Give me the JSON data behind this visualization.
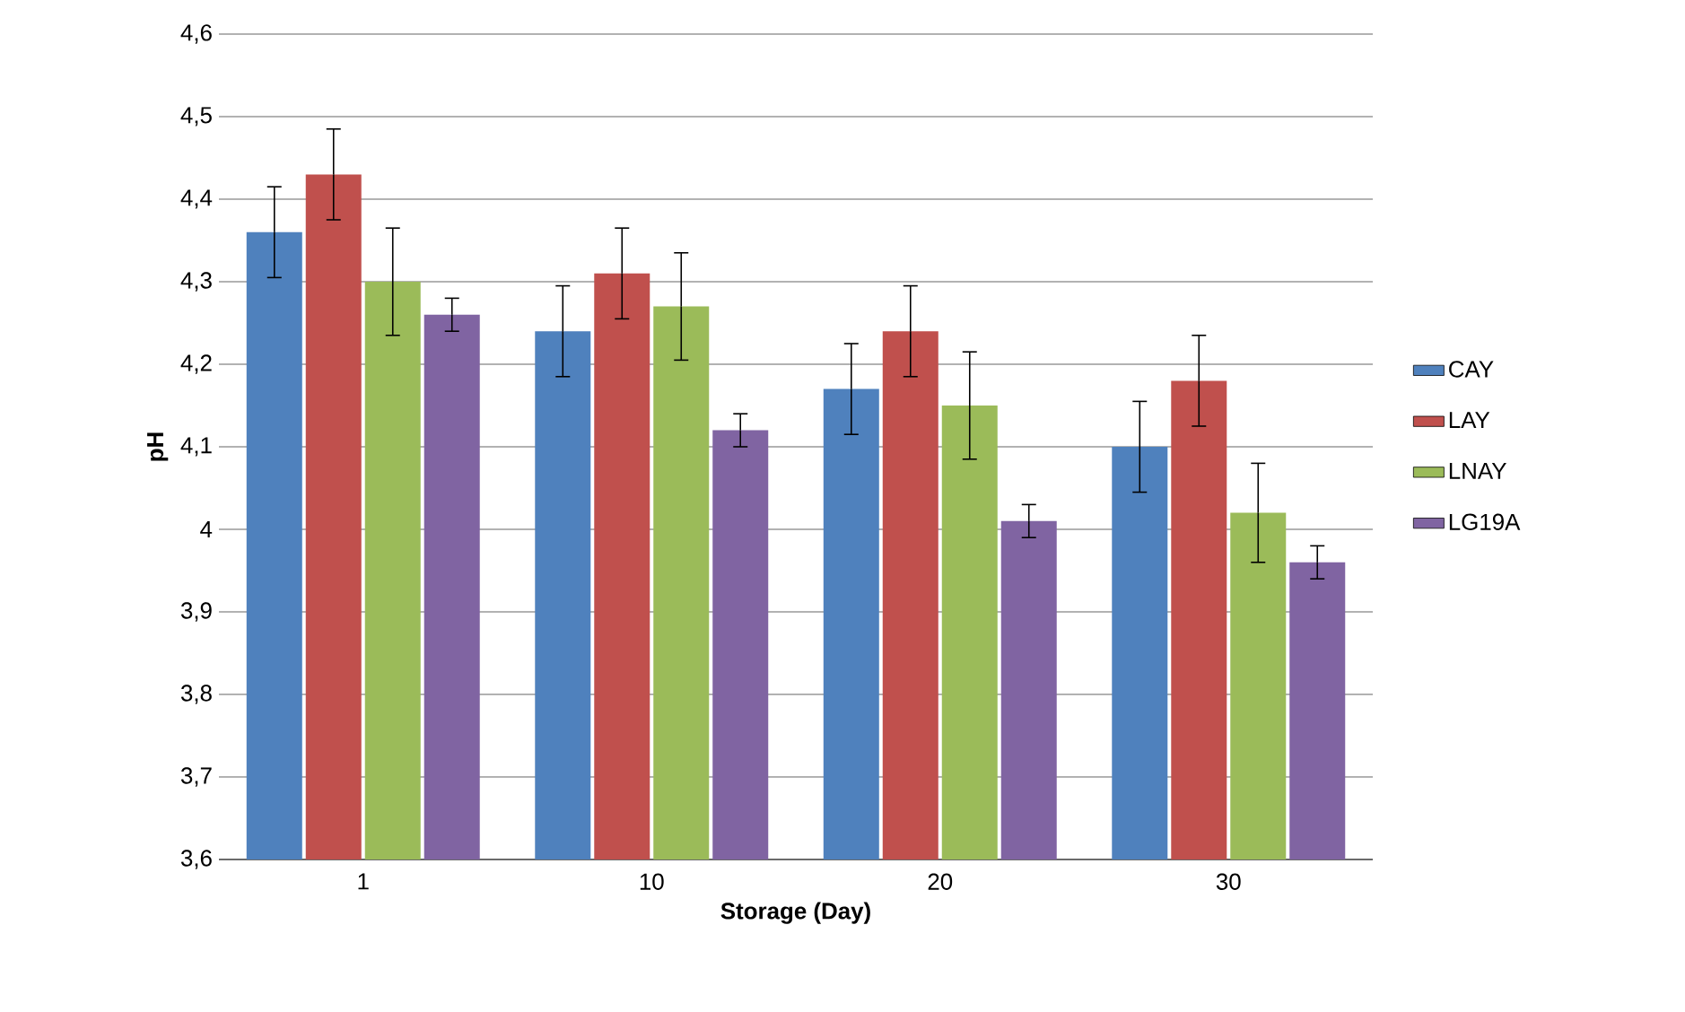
{
  "chart_data": {
    "type": "bar",
    "xlabel": "Storage (Day)",
    "ylabel": "pH",
    "categories": [
      "1",
      "10",
      "20",
      "30"
    ],
    "ylim": [
      3.6,
      4.6
    ],
    "yticks": [
      {
        "value": 3.6,
        "label": "3,6"
      },
      {
        "value": 3.7,
        "label": "3,7"
      },
      {
        "value": 3.8,
        "label": "3,8"
      },
      {
        "value": 3.9,
        "label": "3,9"
      },
      {
        "value": 4.0,
        "label": "4"
      },
      {
        "value": 4.1,
        "label": "4,1"
      },
      {
        "value": 4.2,
        "label": "4,2"
      },
      {
        "value": 4.3,
        "label": "4,3"
      },
      {
        "value": 4.4,
        "label": "4,4"
      },
      {
        "value": 4.5,
        "label": "4,5"
      },
      {
        "value": 4.6,
        "label": "4,6"
      }
    ],
    "grid": "y",
    "legend": "right",
    "series": [
      {
        "name": "CAY",
        "color": "#4f81bd",
        "values": [
          4.36,
          4.24,
          4.17,
          4.1
        ],
        "errors": [
          0.055,
          0.055,
          0.055,
          0.055
        ]
      },
      {
        "name": "LAY",
        "color": "#c0504d",
        "values": [
          4.43,
          4.31,
          4.24,
          4.18
        ],
        "errors": [
          0.055,
          0.055,
          0.055,
          0.055
        ]
      },
      {
        "name": "LNAY",
        "color": "#9bbb59",
        "values": [
          4.3,
          4.27,
          4.15,
          4.02
        ],
        "errors": [
          0.065,
          0.065,
          0.065,
          0.06
        ]
      },
      {
        "name": "LG19A",
        "color": "#8064a2",
        "values": [
          4.26,
          4.12,
          4.01,
          3.96
        ],
        "errors": [
          0.02,
          0.02,
          0.02,
          0.02
        ]
      }
    ]
  }
}
